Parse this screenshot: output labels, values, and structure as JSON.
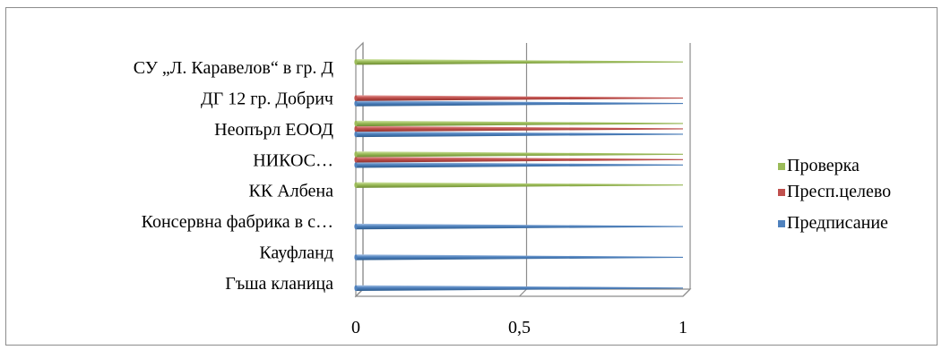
{
  "chart_data": {
    "type": "bar",
    "orientation": "horizontal",
    "style": "3d-cone",
    "categories": [
      "Гъша кланица",
      "Кауфланд",
      "Консервна фабрика в с…",
      "КК Албена",
      "НИКОС…",
      "Неопърл ЕООД",
      "ДГ 12 гр. Добрич",
      "СУ „Л. Каравелов“ в гр. Д"
    ],
    "series": [
      {
        "name": "Предписание",
        "color": "#4f81bd",
        "values": [
          1,
          1,
          1,
          0,
          1,
          1,
          1,
          0
        ]
      },
      {
        "name": "Пресп.целево",
        "color": "#c0504d",
        "values": [
          0,
          0,
          0,
          0,
          1,
          1,
          1,
          0
        ]
      },
      {
        "name": "Проверка",
        "color": "#9bbb59",
        "values": [
          0,
          0,
          0,
          1,
          1,
          1,
          0,
          1
        ]
      }
    ],
    "xlim": [
      0,
      1
    ],
    "xticks": [
      "0",
      "0,5",
      "1"
    ],
    "xtick_values": [
      0,
      0.5,
      1
    ],
    "grid": true,
    "legend": "right",
    "legend_order": [
      "Проверка",
      "Пресп.целево",
      "Предписание"
    ]
  }
}
